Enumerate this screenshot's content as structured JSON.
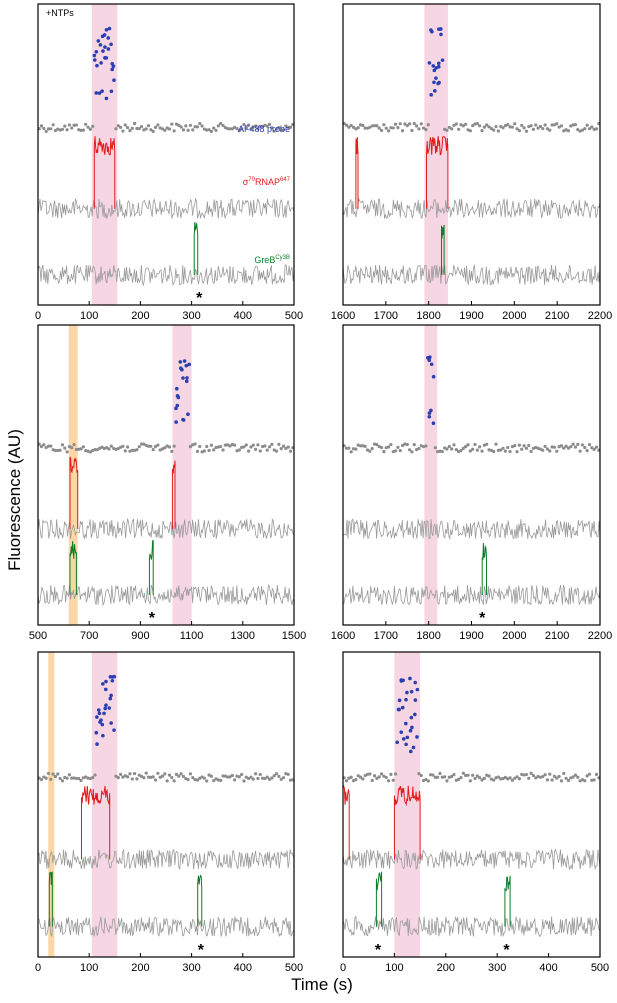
{
  "figure": {
    "ylabel": "Fluorescence (AU)",
    "xlabel": "Time (s)",
    "condition_label": "+NTPs",
    "legend": {
      "probe": {
        "base": "AF488 probe"
      },
      "rnap": {
        "pre": "σ",
        "sup1": "70",
        "base": "RNAP",
        "sup2": "647"
      },
      "greb": {
        "base": "GreB",
        "sup": "Cy3B"
      }
    },
    "colors": {
      "probe": "#2a3fb0",
      "probe_bg": "#8c8c8c",
      "rnap": "#e21b1b",
      "greb": "#0f7d2a",
      "trace": "#9a9a9a",
      "pink_band": "#f7d6e4",
      "orange_band": "#fbd7a8"
    }
  },
  "chart_data": [
    {
      "type": "line",
      "panel": "top-left",
      "xlim": [
        0,
        500
      ],
      "xticks": [
        "0",
        "100",
        "200",
        "300",
        "400",
        "500"
      ],
      "pink_band": [
        105,
        155
      ],
      "orange_band": null,
      "series": [
        {
          "name": "AF488 probe",
          "baseline": 0,
          "high_interval": [
            110,
            150
          ],
          "high_level": 1
        }
      ],
      "rnap_events": [
        [
          110,
          150
        ]
      ],
      "greb_events": [
        [
          305,
          312
        ]
      ],
      "asterisks": [
        315
      ]
    },
    {
      "type": "line",
      "panel": "top-right",
      "xlim": [
        1600,
        2200
      ],
      "xticks": [
        "1600",
        "1700",
        "1800",
        "1900",
        "2000",
        "2100",
        "2200"
      ],
      "pink_band": [
        1790,
        1845
      ],
      "orange_band": null,
      "series": [
        {
          "name": "AF488 probe",
          "baseline": 0,
          "high_interval": [
            1800,
            1835
          ],
          "high_level": 1
        }
      ],
      "rnap_events": [
        [
          1630,
          1635
        ],
        [
          1795,
          1845
        ]
      ],
      "greb_events": [
        [
          1830,
          1836
        ]
      ],
      "asterisks": []
    },
    {
      "type": "line",
      "panel": "middle-left",
      "xlim": [
        500,
        1500
      ],
      "xticks": [
        "500",
        "700",
        "900",
        "1100",
        "1300",
        "1500"
      ],
      "pink_band": [
        1025,
        1100
      ],
      "orange_band": [
        620,
        655
      ],
      "series": [
        {
          "name": "AF488 probe",
          "baseline": 0,
          "high_interval": [
            1040,
            1095
          ],
          "high_level": 1
        }
      ],
      "rnap_events": [
        [
          625,
          655
        ],
        [
          1025,
          1035
        ]
      ],
      "greb_events": [
        [
          625,
          650
        ],
        [
          935,
          950
        ]
      ],
      "asterisks": [
        945
      ]
    },
    {
      "type": "line",
      "panel": "middle-right",
      "xlim": [
        1600,
        2200
      ],
      "xticks": [
        "1600",
        "1700",
        "1800",
        "1900",
        "2000",
        "2100",
        "2200"
      ],
      "pink_band": [
        1790,
        1820
      ],
      "orange_band": null,
      "series": [
        {
          "name": "AF488 probe",
          "baseline": 0,
          "high_interval": [
            1795,
            1815
          ],
          "high_level": 1
        }
      ],
      "rnap_events": [],
      "greb_events": [
        [
          1925,
          1935
        ]
      ],
      "asterisks": [
        1925
      ]
    },
    {
      "type": "line",
      "panel": "bottom-left",
      "xlim": [
        0,
        500
      ],
      "xticks": [
        "0",
        "100",
        "200",
        "300",
        "400",
        "500"
      ],
      "pink_band": [
        105,
        155
      ],
      "orange_band": [
        20,
        32
      ],
      "series": [
        {
          "name": "AF488 probe",
          "baseline": 0,
          "high_interval": [
            115,
            150
          ],
          "high_level": 1
        }
      ],
      "rnap_events": [
        [
          85,
          140
        ]
      ],
      "greb_events": [
        [
          22,
          28
        ],
        [
          312,
          320
        ]
      ],
      "asterisks": [
        318
      ]
    },
    {
      "type": "line",
      "panel": "bottom-right",
      "xlim": [
        0,
        500
      ],
      "xticks": [
        "0",
        "100",
        "200",
        "300",
        "400",
        "500"
      ],
      "pink_band": [
        100,
        150
      ],
      "orange_band": null,
      "series": [
        {
          "name": "AF488 probe",
          "baseline": 0,
          "high_interval": [
            105,
            145
          ],
          "high_level": 1
        }
      ],
      "rnap_events": [
        [
          0,
          12
        ],
        [
          100,
          150
        ]
      ],
      "greb_events": [
        [
          65,
          75
        ],
        [
          315,
          325
        ]
      ],
      "asterisks": [
        68,
        318
      ]
    }
  ]
}
